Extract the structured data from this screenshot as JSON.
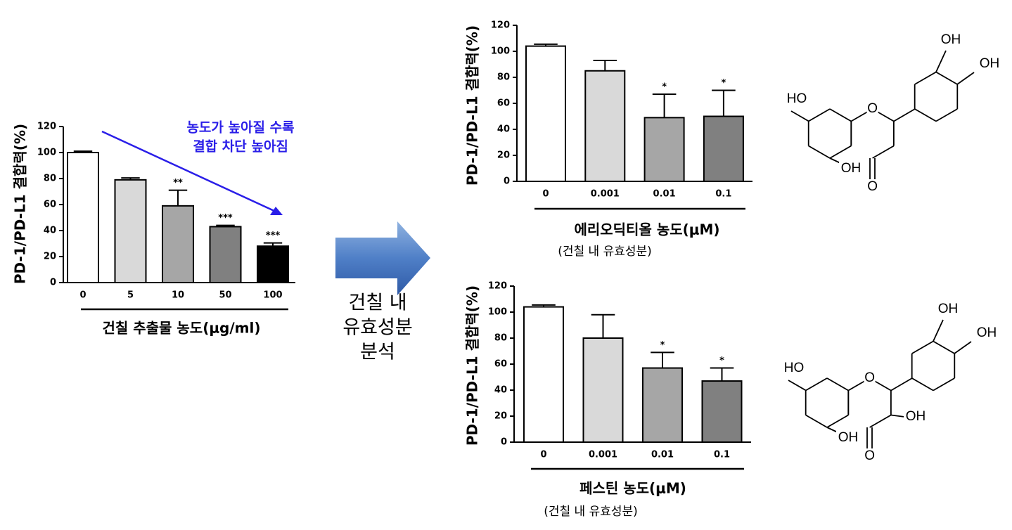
{
  "chart_data": [
    {
      "type": "bar",
      "y_label": "PD-1/PD-L1 결합력(%)",
      "x_label": "건칠 추출물 농도(μg/ml)",
      "categories": [
        "0",
        "5",
        "10",
        "50",
        "100"
      ],
      "values": [
        100,
        79,
        59,
        43,
        28
      ],
      "errors": [
        1,
        1.5,
        12,
        1,
        2.5
      ],
      "significance": [
        null,
        null,
        "**",
        "***",
        "***"
      ],
      "colors": [
        "#ffffff",
        "#d9d9d9",
        "#a6a6a6",
        "#808080",
        "#000000"
      ],
      "ylim": [
        0,
        120
      ],
      "yticks": [
        0,
        20,
        40,
        60,
        80,
        100,
        120
      ],
      "annotation": [
        "농도가 높아질 수록",
        "결합 차단 높아짐"
      ]
    },
    {
      "type": "bar",
      "y_label": "PD-1/PD-L1 결합력(%)",
      "x_label": "에리오딕티올 농도(μM)",
      "subtitle": "(건칠 내 유효성분)",
      "categories": [
        "0",
        "0.001",
        "0.01",
        "0.1"
      ],
      "values": [
        104,
        85,
        49,
        50
      ],
      "errors": [
        1.5,
        8,
        18,
        20
      ],
      "significance": [
        null,
        null,
        "*",
        "*"
      ],
      "colors": [
        "#ffffff",
        "#d9d9d9",
        "#a6a6a6",
        "#808080"
      ],
      "ylim": [
        0,
        120
      ],
      "yticks": [
        0,
        20,
        40,
        60,
        80,
        100,
        120
      ]
    },
    {
      "type": "bar",
      "y_label": "PD-1/PD-L1 결합력(%)",
      "x_label": "페스틴 농도(μM)",
      "subtitle": "(건칠 내 유효성분)",
      "categories": [
        "0",
        "0.001",
        "0.01",
        "0.1"
      ],
      "values": [
        104,
        80,
        57,
        47
      ],
      "errors": [
        1.5,
        18,
        12,
        10
      ],
      "significance": [
        null,
        null,
        "*",
        "*"
      ],
      "colors": [
        "#ffffff",
        "#d9d9d9",
        "#a6a6a6",
        "#808080"
      ],
      "ylim": [
        0,
        120
      ],
      "yticks": [
        0,
        20,
        40,
        60,
        80,
        100,
        120
      ]
    }
  ],
  "arrow_label": [
    "건칠 내",
    "유효성분",
    "분석"
  ],
  "structures": [
    {
      "atoms": [
        "OH",
        "OH",
        "HO",
        "O",
        "OH",
        "O"
      ]
    },
    {
      "atoms": [
        "OH",
        "OH",
        "HO",
        "O",
        "OH",
        "O",
        "OH"
      ]
    }
  ]
}
